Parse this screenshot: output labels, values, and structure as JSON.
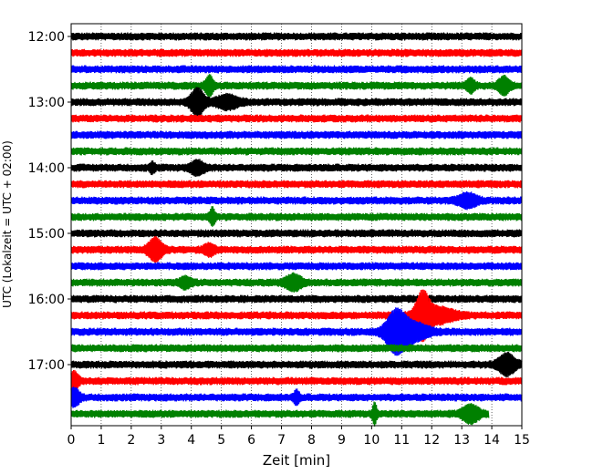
{
  "chart_data": {
    "type": "line",
    "title": "",
    "xlabel": "Zeit  [min]",
    "ylabel": "UTC (Lokalzeit = UTC + 02:00)",
    "xlim": [
      0,
      15
    ],
    "x_ticks": [
      "0",
      "1",
      "2",
      "3",
      "4",
      "5",
      "6",
      "7",
      "8",
      "9",
      "10",
      "11",
      "12",
      "13",
      "14",
      "15"
    ],
    "y_ticks": [
      "12:00",
      "13:00",
      "14:00",
      "15:00",
      "16:00",
      "17:00"
    ],
    "grid": "vertical dotted",
    "trace_interval_min": 15,
    "colors": [
      "#000000",
      "#ff0000",
      "#0000ff",
      "#008000"
    ],
    "traces": [
      {
        "start": "12:00",
        "color": "#000000"
      },
      {
        "start": "12:15",
        "color": "#ff0000"
      },
      {
        "start": "12:30",
        "color": "#0000ff"
      },
      {
        "start": "12:45",
        "color": "#008000"
      },
      {
        "start": "13:00",
        "color": "#000000"
      },
      {
        "start": "13:15",
        "color": "#ff0000"
      },
      {
        "start": "13:30",
        "color": "#0000ff"
      },
      {
        "start": "13:45",
        "color": "#008000"
      },
      {
        "start": "14:00",
        "color": "#000000"
      },
      {
        "start": "14:15",
        "color": "#ff0000"
      },
      {
        "start": "14:30",
        "color": "#0000ff"
      },
      {
        "start": "14:45",
        "color": "#008000"
      },
      {
        "start": "15:00",
        "color": "#000000"
      },
      {
        "start": "15:15",
        "color": "#ff0000"
      },
      {
        "start": "15:30",
        "color": "#0000ff"
      },
      {
        "start": "15:45",
        "color": "#008000"
      },
      {
        "start": "16:00",
        "color": "#000000"
      },
      {
        "start": "16:15",
        "color": "#ff0000"
      },
      {
        "start": "16:30",
        "color": "#0000ff"
      },
      {
        "start": "16:45",
        "color": "#008000"
      },
      {
        "start": "17:00",
        "color": "#000000"
      },
      {
        "start": "17:15",
        "color": "#ff0000"
      },
      {
        "start": "17:30",
        "color": "#0000ff"
      },
      {
        "start": "17:45",
        "color": "#008000"
      }
    ]
  }
}
